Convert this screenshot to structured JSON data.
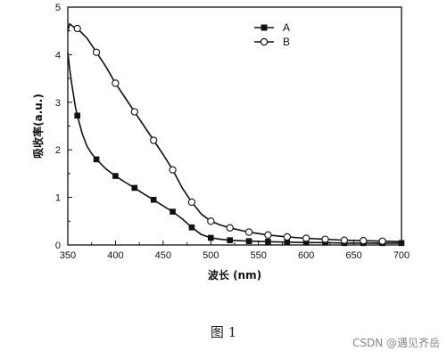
{
  "chart_data": {
    "type": "line",
    "xlabel": "波长 (nm)",
    "ylabel": "吸收率(a.u.)",
    "xlim": [
      350,
      700
    ],
    "ylim": [
      0,
      5
    ],
    "xticks": [
      350,
      400,
      450,
      500,
      550,
      600,
      650,
      700
    ],
    "yticks": [
      0,
      1,
      2,
      3,
      4,
      5
    ],
    "grid": false,
    "legend_position": "top-right",
    "series": [
      {
        "name": "A",
        "marker": "filled-square",
        "curve_x": [
          350,
          352,
          354,
          356,
          358,
          360,
          365,
          370,
          375,
          380,
          390,
          400,
          410,
          420,
          430,
          440,
          450,
          460,
          470,
          480,
          490,
          500,
          510,
          520,
          540,
          560,
          580,
          600,
          620,
          640,
          660,
          680,
          700
        ],
        "curve_y": [
          4.05,
          3.7,
          3.4,
          3.15,
          2.9,
          2.72,
          2.35,
          2.08,
          1.92,
          1.8,
          1.6,
          1.45,
          1.32,
          1.2,
          1.07,
          0.95,
          0.82,
          0.7,
          0.55,
          0.37,
          0.22,
          0.15,
          0.12,
          0.1,
          0.08,
          0.07,
          0.06,
          0.05,
          0.05,
          0.04,
          0.04,
          0.04,
          0.04
        ],
        "marker_x": [
          360,
          380,
          400,
          420,
          440,
          460,
          480,
          500,
          520,
          540,
          560,
          580,
          600,
          620,
          640,
          660,
          680,
          700
        ],
        "marker_y": [
          2.72,
          1.8,
          1.45,
          1.2,
          0.95,
          0.7,
          0.37,
          0.15,
          0.1,
          0.08,
          0.07,
          0.06,
          0.05,
          0.05,
          0.04,
          0.04,
          0.04,
          0.04
        ]
      },
      {
        "name": "B",
        "marker": "open-circle",
        "curve_x": [
          350,
          352,
          355,
          360,
          370,
          380,
          390,
          400,
          410,
          420,
          430,
          440,
          450,
          460,
          470,
          480,
          490,
          500,
          510,
          520,
          540,
          560,
          580,
          600,
          620,
          640,
          660,
          680,
          700
        ],
        "curve_y": [
          4.5,
          4.65,
          4.6,
          4.55,
          4.35,
          4.05,
          3.75,
          3.4,
          3.1,
          2.8,
          2.5,
          2.2,
          1.9,
          1.58,
          1.2,
          0.9,
          0.65,
          0.5,
          0.42,
          0.36,
          0.27,
          0.21,
          0.17,
          0.14,
          0.12,
          0.1,
          0.09,
          0.08,
          0.07
        ],
        "marker_x": [
          360,
          380,
          400,
          420,
          440,
          460,
          480,
          500,
          520,
          540,
          560,
          580,
          600,
          620,
          640,
          660,
          680
        ],
        "marker_y": [
          4.55,
          4.05,
          3.4,
          2.8,
          2.2,
          1.58,
          0.9,
          0.5,
          0.36,
          0.27,
          0.21,
          0.17,
          0.14,
          0.12,
          0.1,
          0.09,
          0.08
        ]
      }
    ]
  },
  "caption": "图 1",
  "watermark": "CSDN @遇见齐岳"
}
